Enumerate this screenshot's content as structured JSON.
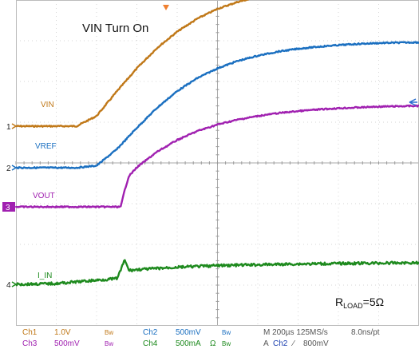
{
  "chart_data": {
    "type": "line",
    "title": "VIN Turn On",
    "annotation": {
      "main": "R",
      "sub": "LOAD",
      "rest": "=5Ω"
    },
    "x_divisions": 10,
    "y_divisions": 8,
    "grid": true,
    "series": [
      {
        "name": "VIN",
        "channel": "1",
        "color": "#c07818",
        "x": [
          0,
          0.5,
          1,
          1.5,
          2,
          2.5,
          3,
          3.5,
          4,
          4.5,
          5,
          5.5,
          6,
          6.5,
          7,
          7.5,
          8,
          8.5,
          9,
          9.5,
          10
        ],
        "y": [
          0,
          0,
          0,
          0,
          0.25,
          0.85,
          1.42,
          1.92,
          2.32,
          2.64,
          2.88,
          3.05,
          3.17,
          3.26,
          3.33,
          3.38,
          3.41,
          3.44,
          3.45,
          3.46,
          3.46
        ]
      },
      {
        "name": "VREF",
        "channel": "2",
        "color": "#1a6fc0",
        "x": [
          0,
          0.5,
          1,
          1.5,
          2,
          2.5,
          3,
          3.5,
          4,
          4.5,
          5,
          5.5,
          6,
          6.5,
          7,
          7.5,
          8,
          8.5,
          9,
          9.5,
          10
        ],
        "y": [
          0,
          0,
          0,
          0,
          0.05,
          0.45,
          0.98,
          1.47,
          1.88,
          2.2,
          2.44,
          2.62,
          2.75,
          2.85,
          2.92,
          2.97,
          3.01,
          3.04,
          3.06,
          3.07,
          3.08
        ]
      },
      {
        "name": "VOUT",
        "channel": "3",
        "color": "#a020b0",
        "x": [
          0,
          1,
          2,
          2.6,
          2.7,
          2.8,
          3,
          3.5,
          4,
          4.5,
          5,
          5.5,
          6,
          6.5,
          7,
          7.5,
          8,
          8.5,
          9,
          9.5,
          10
        ],
        "y": [
          0,
          0,
          0,
          0,
          0.42,
          0.75,
          0.97,
          1.35,
          1.64,
          1.86,
          2.02,
          2.14,
          2.23,
          2.3,
          2.35,
          2.39,
          2.42,
          2.44,
          2.46,
          2.47,
          2.48
        ]
      },
      {
        "name": "I_IN",
        "channel": "4",
        "color": "#1e8a1e",
        "x": [
          0,
          1,
          1.5,
          2,
          2.5,
          2.6,
          2.7,
          2.8,
          3,
          4,
          5,
          6,
          7,
          8,
          9,
          10
        ],
        "y": [
          0,
          0.02,
          0.06,
          0.1,
          0.14,
          0.35,
          0.6,
          0.34,
          0.36,
          0.42,
          0.46,
          0.48,
          0.5,
          0.51,
          0.52,
          0.53
        ]
      }
    ]
  },
  "footer": {
    "row1": {
      "ch1": "Ch1",
      "ch1_scale": "1.0V",
      "bw1": "Bw",
      "ch2": "Ch2",
      "ch2_scale": "500mV",
      "bw2": "Bw",
      "timebase": "M 200µs 125MS/s",
      "pt": "8.0ns/pt"
    },
    "row2": {
      "ch3": "Ch3",
      "ch3_scale": "500mV",
      "bw3": "Bw",
      "ch4": "Ch4",
      "ch4_scale": "500mA",
      "ohm": "Ω",
      "bw4": "Bw",
      "trig": "A",
      "trig_ch": "Ch2",
      "trig_slope": "∕",
      "trig_level": "800mV"
    }
  }
}
